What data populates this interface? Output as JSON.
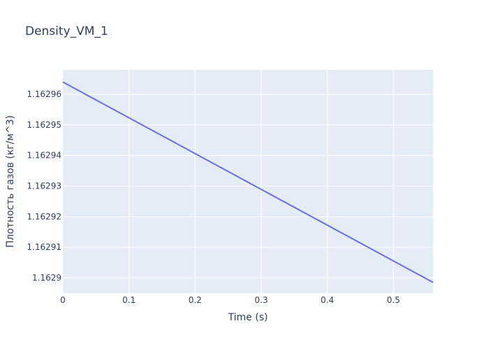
{
  "chart_data": {
    "type": "line",
    "title": "Density_VM_1",
    "xlabel": "Time (s)",
    "ylabel": "Плотность газов (кг/м^3)",
    "xlim": [
      0,
      0.56
    ],
    "ylim": [
      1.162895,
      1.162968
    ],
    "x_ticks": [
      {
        "value": 0,
        "label": "0"
      },
      {
        "value": 0.1,
        "label": "0.1"
      },
      {
        "value": 0.2,
        "label": "0.2"
      },
      {
        "value": 0.3,
        "label": "0.3"
      },
      {
        "value": 0.4,
        "label": "0.4"
      },
      {
        "value": 0.5,
        "label": "0.5"
      }
    ],
    "y_ticks": [
      {
        "value": 1.1629,
        "label": "1.1629"
      },
      {
        "value": 1.16291,
        "label": "1.16291"
      },
      {
        "value": 1.16292,
        "label": "1.16292"
      },
      {
        "value": 1.16293,
        "label": "1.16293"
      },
      {
        "value": 1.16294,
        "label": "1.16294"
      },
      {
        "value": 1.16295,
        "label": "1.16295"
      },
      {
        "value": 1.16296,
        "label": "1.16296"
      }
    ],
    "grid": true,
    "series": [
      {
        "color": "#636efa",
        "x": [
          0,
          0.56
        ],
        "y": [
          1.162964,
          1.1628985
        ]
      }
    ]
  },
  "colors": {
    "plot_background": "#e5ecf6",
    "grid": "#ffffff",
    "text": "#2a3f5f"
  }
}
